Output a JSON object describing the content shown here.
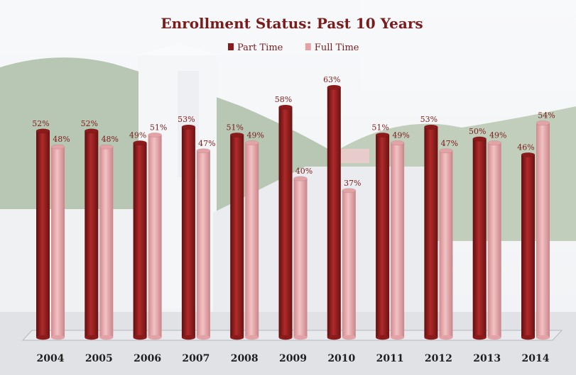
{
  "chart_data": {
    "type": "bar",
    "title": "Enrollment Status: Past 10 Years",
    "xlabel": "",
    "ylabel": "",
    "ylim": [
      0,
      70
    ],
    "grid": false,
    "legend_position": "top",
    "categories": [
      "2004",
      "2005",
      "2006",
      "2007",
      "2008",
      "2009",
      "2010",
      "2011",
      "2012",
      "2013",
      "2014"
    ],
    "series": [
      {
        "name": "Part Time",
        "color": "#8b1a1a",
        "values": [
          52,
          52,
          49,
          53,
          51,
          58,
          63,
          51,
          53,
          50,
          46
        ],
        "labels": [
          "52%",
          "52%",
          "49%",
          "53%",
          "51%",
          "58%",
          "63%",
          "51%",
          "53%",
          "50%",
          "46%"
        ]
      },
      {
        "name": "Full Time",
        "color": "#e3a3a6",
        "values": [
          48,
          48,
          51,
          47,
          49,
          40,
          37,
          49,
          47,
          49,
          54
        ],
        "labels": [
          "48%",
          "48%",
          "51%",
          "47%",
          "49%",
          "40%",
          "37%",
          "49%",
          "47%",
          "49%",
          "54%"
        ]
      }
    ]
  }
}
